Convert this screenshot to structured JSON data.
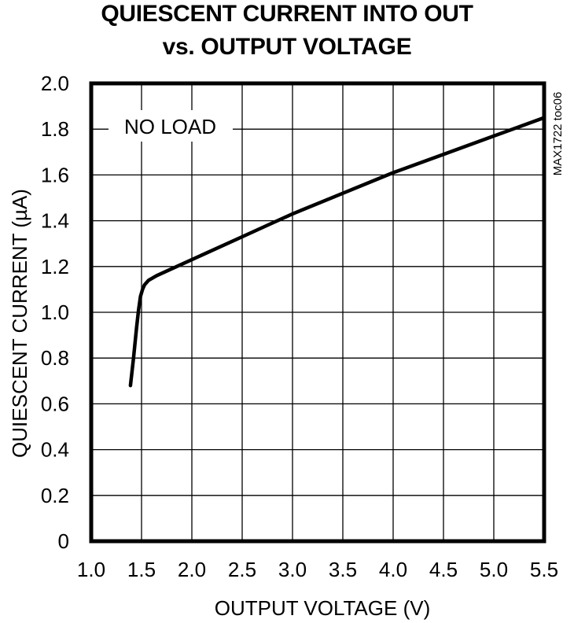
{
  "chart_data": {
    "type": "line",
    "title_lines": [
      "QUIESCENT CURRENT INTO OUT",
      "vs. OUTPUT VOLTAGE"
    ],
    "xlabel": "OUTPUT VOLTAGE (V)",
    "ylabel": "QUIESCENT CURRENT (µA)",
    "xlim": [
      1.0,
      5.5
    ],
    "ylim": [
      0,
      2.0
    ],
    "x_ticks": [
      1.0,
      1.5,
      2.0,
      2.5,
      3.0,
      3.5,
      4.0,
      4.5,
      5.0,
      5.5
    ],
    "x_tick_labels": [
      "1.0",
      "1.5",
      "2.0",
      "2.5",
      "3.0",
      "3.5",
      "4.0",
      "4.5",
      "5.0",
      "5.5"
    ],
    "y_ticks": [
      0,
      0.2,
      0.4,
      0.6,
      0.8,
      1.0,
      1.2,
      1.4,
      1.6,
      1.8,
      2.0
    ],
    "y_tick_labels": [
      "0",
      "0.2",
      "0.4",
      "0.6",
      "0.8",
      "1.0",
      "1.2",
      "1.4",
      "1.6",
      "1.8",
      "2.0"
    ],
    "grid": true,
    "annotation": "NO LOAD",
    "watermark": "MAX1722 toc06",
    "series": [
      {
        "x": [
          1.39,
          1.42,
          1.45,
          1.47,
          1.49,
          1.51,
          1.53,
          1.57,
          1.65,
          1.8,
          2.0,
          2.2,
          2.5,
          2.8,
          3.0,
          3.5,
          4.0,
          4.5,
          5.0,
          5.5
        ],
        "y": [
          0.68,
          0.8,
          0.93,
          1.01,
          1.07,
          1.1,
          1.12,
          1.14,
          1.16,
          1.19,
          1.23,
          1.27,
          1.33,
          1.39,
          1.43,
          1.52,
          1.61,
          1.69,
          1.77,
          1.85
        ]
      }
    ],
    "line_color": "#000000",
    "grid_color": "#000000"
  }
}
